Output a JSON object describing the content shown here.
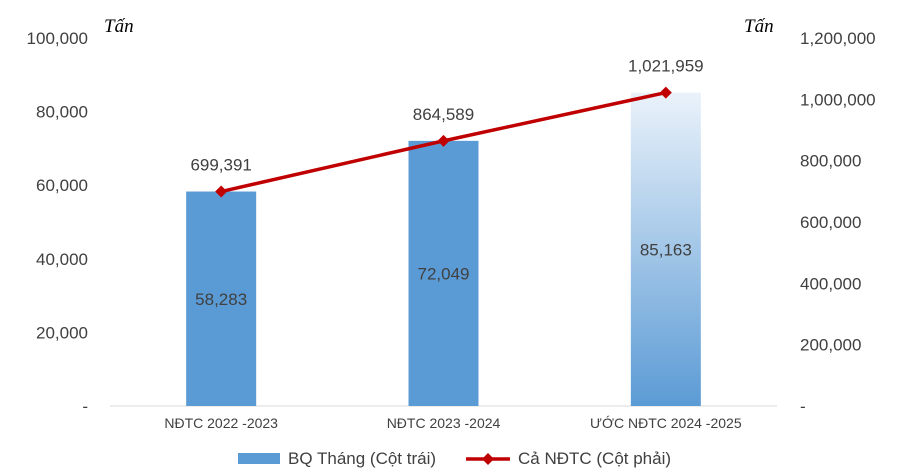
{
  "chart_data": {
    "type": "bar",
    "categories": [
      "NĐTC 2022 -2023",
      "NĐTC 2023 -2024",
      "ƯỚC NĐTC 2024 -2025"
    ],
    "series": [
      {
        "name": "BQ Tháng (Cột trái)",
        "type": "bar",
        "axis": "left",
        "values": [
          58283,
          72049,
          85163
        ],
        "labels": [
          "58,283",
          "72,049",
          "85,163"
        ],
        "color": "#5B9BD5"
      },
      {
        "name": "Cả NĐTC (Cột phải)",
        "type": "line",
        "axis": "right",
        "values": [
          699391,
          864589,
          1021959
        ],
        "labels": [
          "699,391",
          "864,589",
          "1,021,959"
        ],
        "color": "#C00000"
      }
    ],
    "y_left": {
      "unit": "Tấn",
      "range": [
        0,
        100000
      ],
      "ticks": [
        0,
        20000,
        40000,
        60000,
        80000,
        100000
      ],
      "tick_labels": [
        "-",
        "20,000",
        "40,000",
        "60,000",
        "80,000",
        "100,000"
      ]
    },
    "y_right": {
      "unit": "Tấn",
      "range": [
        0,
        1200000
      ],
      "ticks": [
        0,
        200000,
        400000,
        600000,
        800000,
        1000000,
        1200000
      ],
      "tick_labels": [
        "-",
        "200,000",
        "400,000",
        "600,000",
        "800,000",
        "1,000,000",
        "1,200,000"
      ]
    },
    "grid": false,
    "legend": "bottom-center"
  }
}
